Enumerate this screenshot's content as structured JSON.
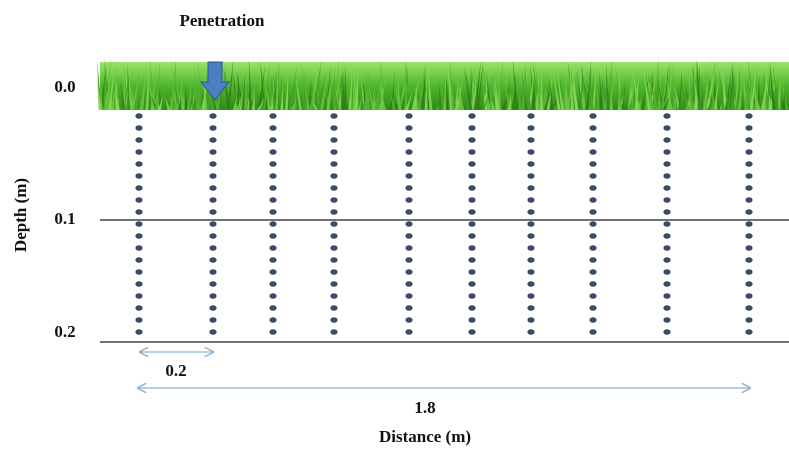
{
  "header": {
    "title": "Penetration"
  },
  "axes": {
    "y_title": "Depth (m)",
    "x_title": "Distance (m)",
    "depth_labels": [
      "0.0",
      "0.1",
      "0.2"
    ]
  },
  "dimensions": {
    "spacing": "0.2",
    "total": "1.8"
  }
}
